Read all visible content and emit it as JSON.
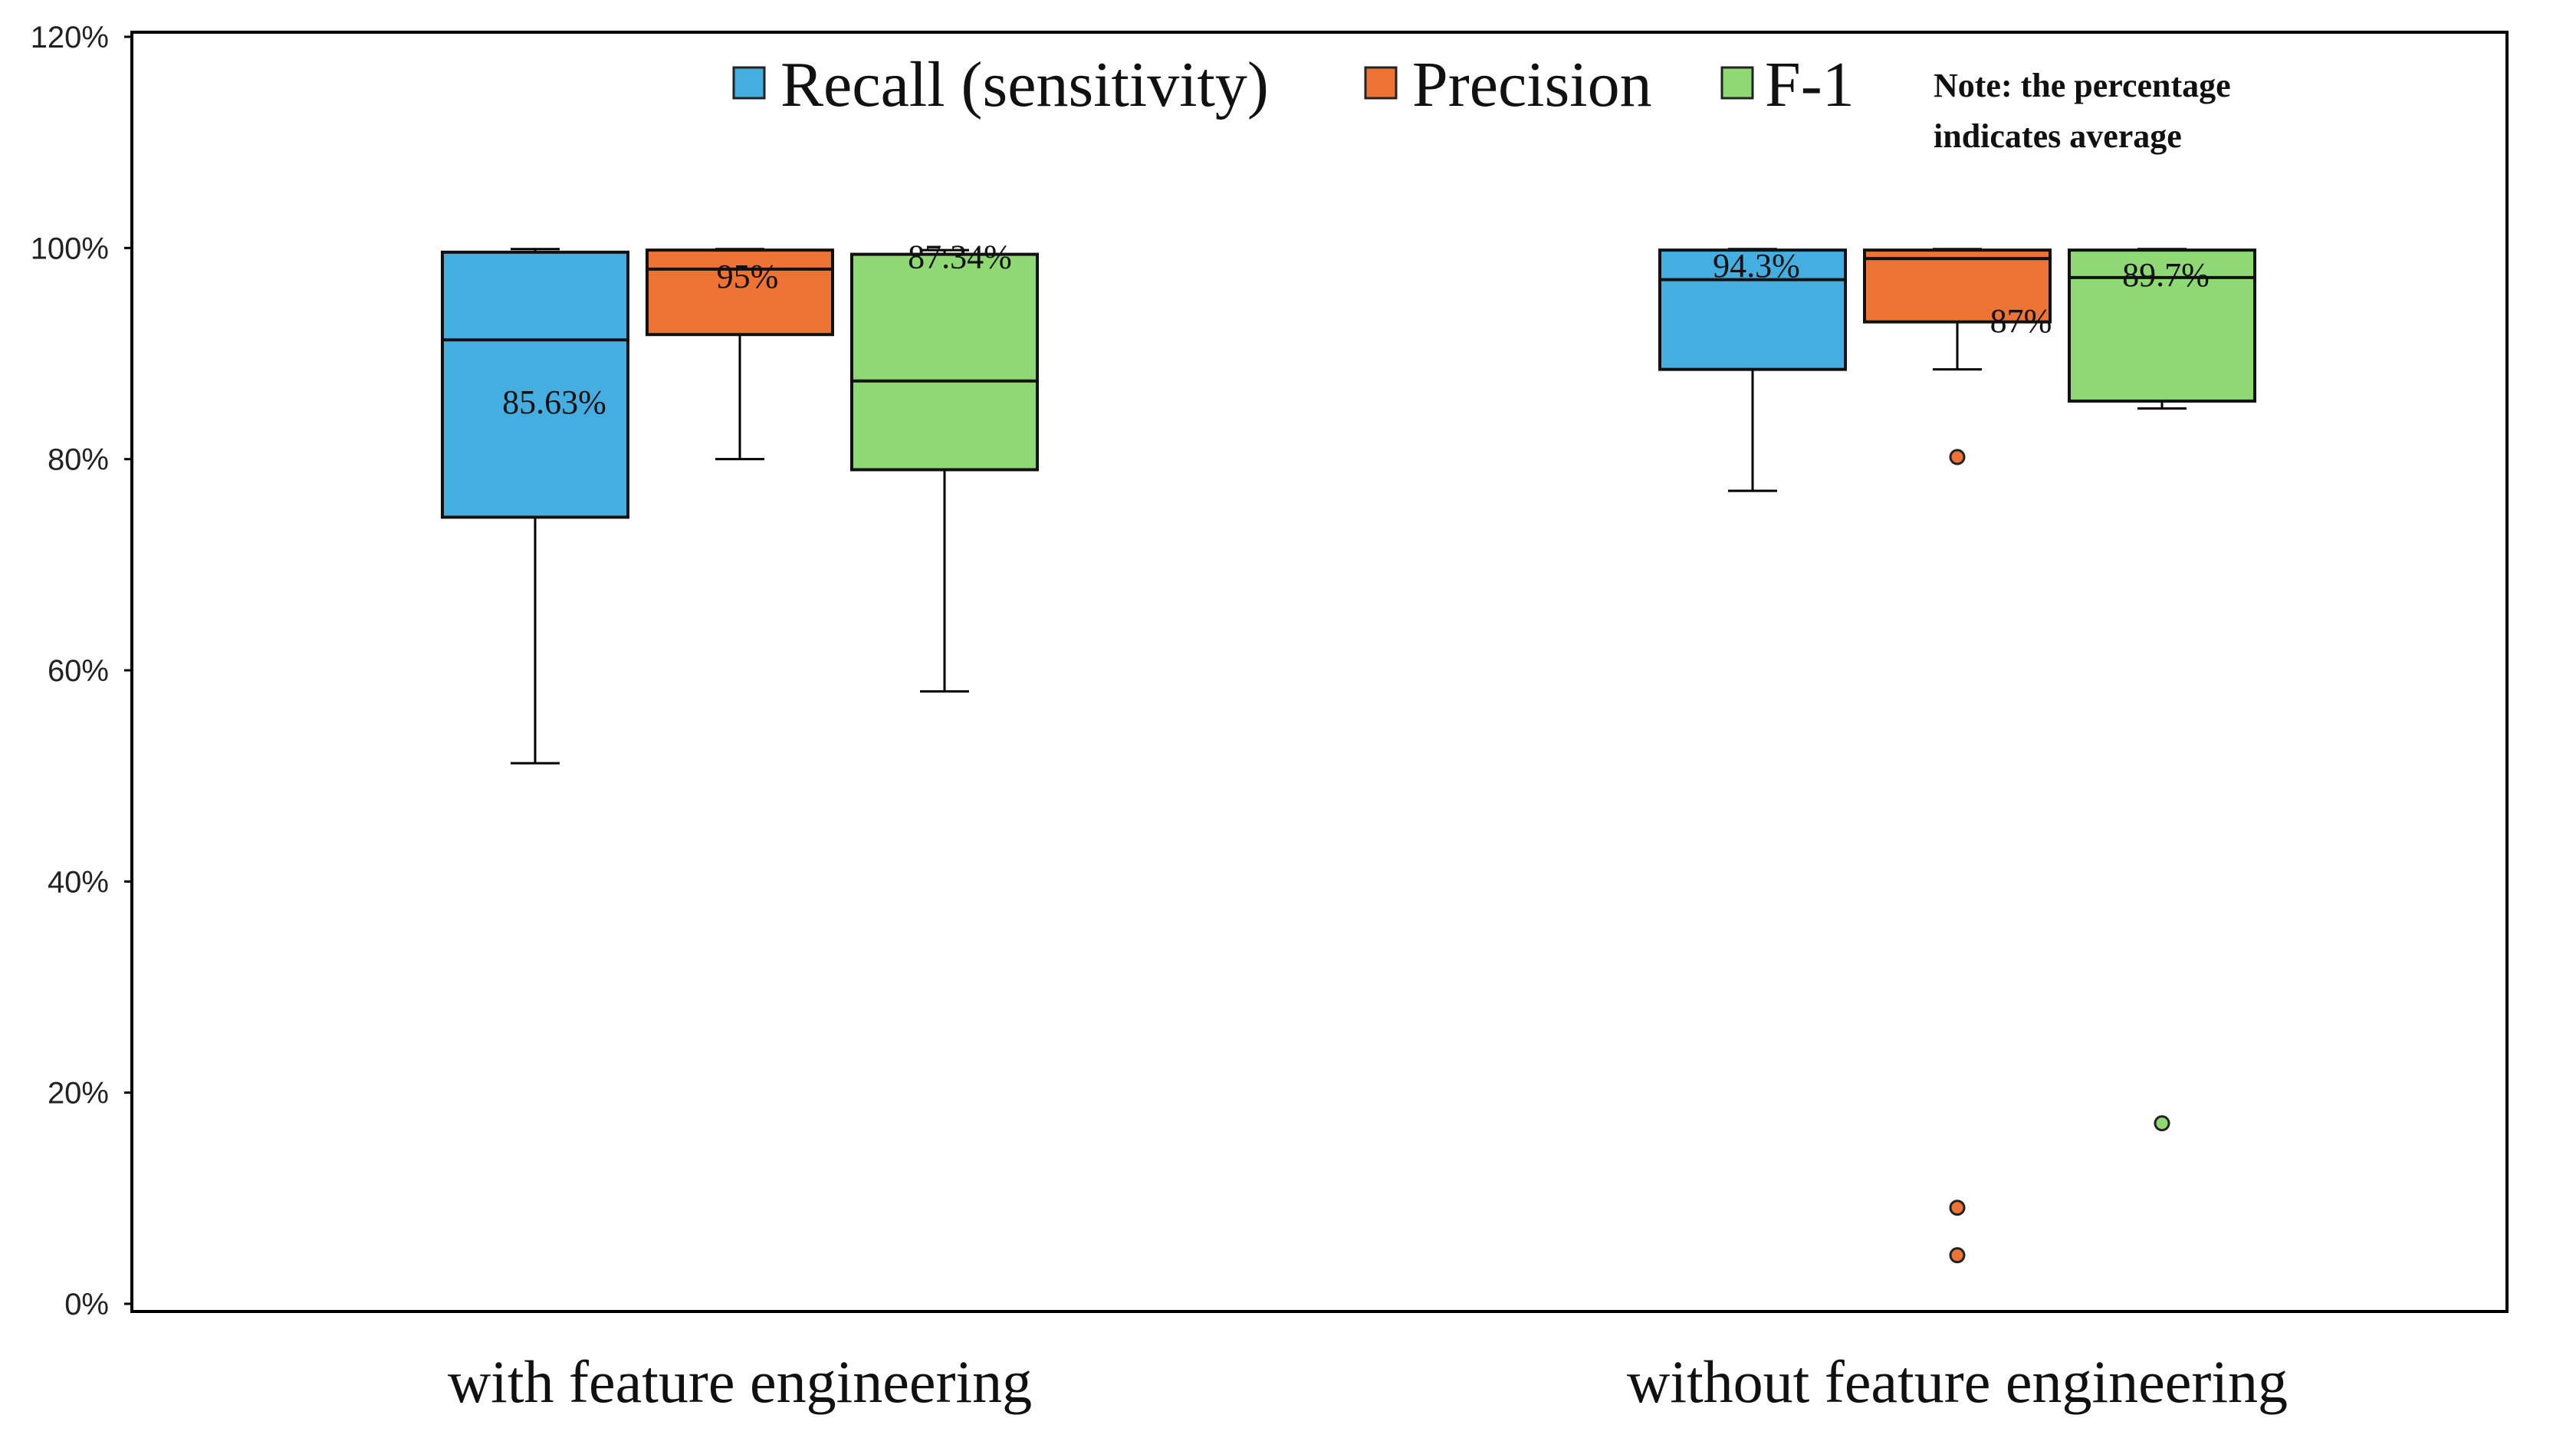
{
  "chart_data": {
    "type": "boxplot",
    "y_axis": {
      "min": 0,
      "max": 120,
      "ticks": [
        0,
        20,
        40,
        60,
        80,
        100,
        120
      ],
      "tick_labels": [
        "0%",
        "20%",
        "40%",
        "60%",
        "80%",
        "100%",
        "120%"
      ]
    },
    "categories": [
      "with feature engineering",
      "without feature engineering"
    ],
    "legend": [
      {
        "name": "Recall (sensitivity)",
        "color": "#45aee0"
      },
      {
        "name": "Precision",
        "color": "#ec7333"
      },
      {
        "name": "F-1",
        "color": "#8ed973"
      }
    ],
    "note": [
      "Note: the percentage",
      "indicates average"
    ],
    "series": [
      {
        "name": "Recall (sensitivity)",
        "color": "#45aee0",
        "boxes": [
          {
            "category": "with feature engineering",
            "whisker_low": 51.2,
            "q1": 74.5,
            "median": 91.3,
            "q3": 99.6,
            "whisker_high": 99.9,
            "mean_label": "85.63%",
            "outliers": []
          },
          {
            "category": "without feature engineering",
            "whisker_low": 77.0,
            "q1": 88.5,
            "median": 97.0,
            "q3": 99.8,
            "whisker_high": 99.9,
            "mean_label": "94.3%",
            "outliers": []
          }
        ]
      },
      {
        "name": "Precision",
        "color": "#ec7333",
        "boxes": [
          {
            "category": "with feature engineering",
            "whisker_low": 80.0,
            "q1": 91.8,
            "median": 98.0,
            "q3": 99.8,
            "whisker_high": 99.9,
            "mean_label": "95%",
            "outliers": []
          },
          {
            "category": "without feature engineering",
            "whisker_low": 88.5,
            "q1": 93.0,
            "median": 99.0,
            "q3": 99.8,
            "whisker_high": 99.9,
            "mean_label": "87%",
            "outliers": [
              80.2,
              9.1,
              4.6
            ]
          }
        ]
      },
      {
        "name": "F-1",
        "color": "#8ed973",
        "boxes": [
          {
            "category": "with feature engineering",
            "whisker_low": 58.0,
            "q1": 79.0,
            "median": 87.4,
            "q3": 99.4,
            "whisker_high": 99.8,
            "mean_label": "87.34%",
            "outliers": []
          },
          {
            "category": "without feature engineering",
            "whisker_low": 84.8,
            "q1": 85.5,
            "median": 97.2,
            "q3": 99.8,
            "whisker_high": 99.9,
            "mean_label": "89.7%",
            "outliers": [
              17.1
            ]
          }
        ]
      }
    ]
  }
}
